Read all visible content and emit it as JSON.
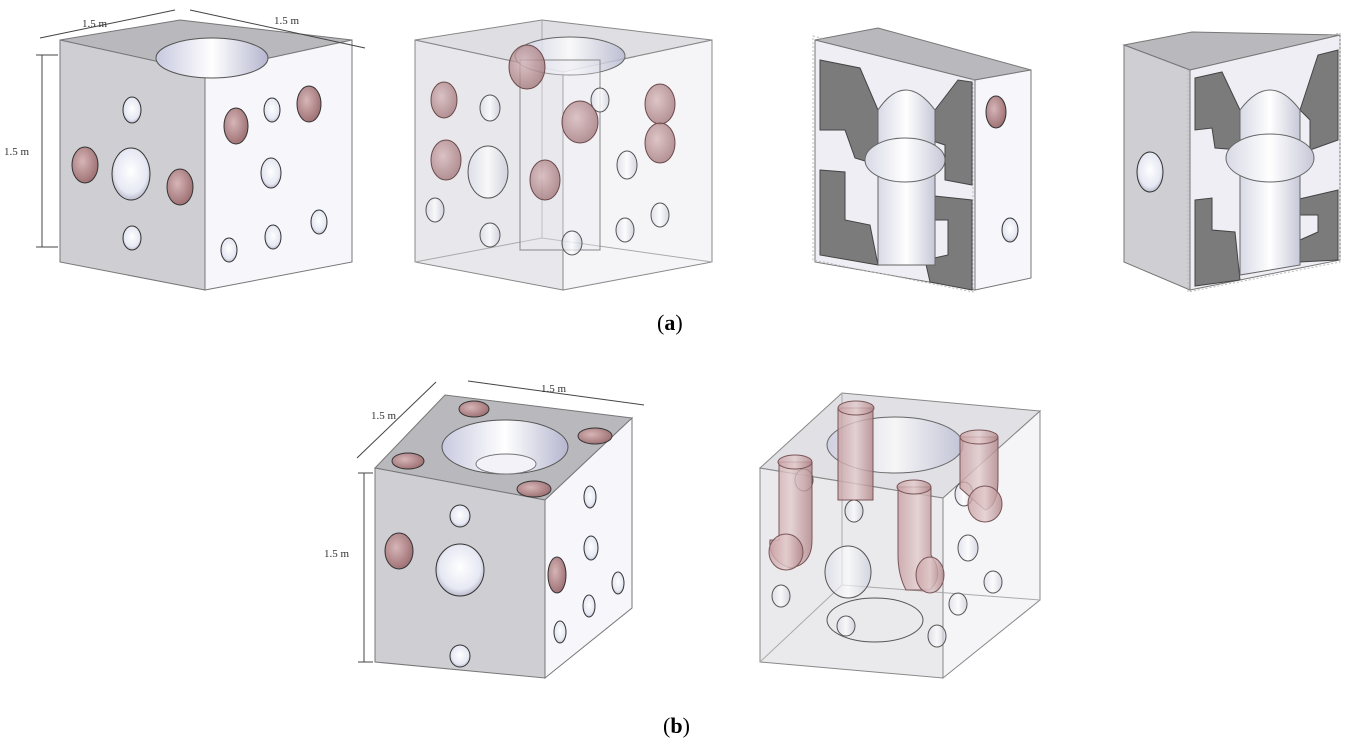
{
  "figure": {
    "colors": {
      "top_face": "#b9b9bd",
      "front_face": "#cfcfd3",
      "side_face": "#f7f7fb",
      "hole_white": "#eef0f8",
      "hole_red": "#b88a8c",
      "section_cut": "#7b7b7b",
      "glass_edge": "#9a9aa2"
    },
    "panel_a": {
      "caption_label": "a",
      "dim_width": "1.5 m",
      "dim_depth": "1.5 m",
      "dim_height": "1.5 m"
    },
    "panel_b": {
      "caption_label": "b",
      "dim_width": "1.5 m",
      "dim_depth": "1.5 m",
      "dim_height": "1.5 m"
    }
  }
}
